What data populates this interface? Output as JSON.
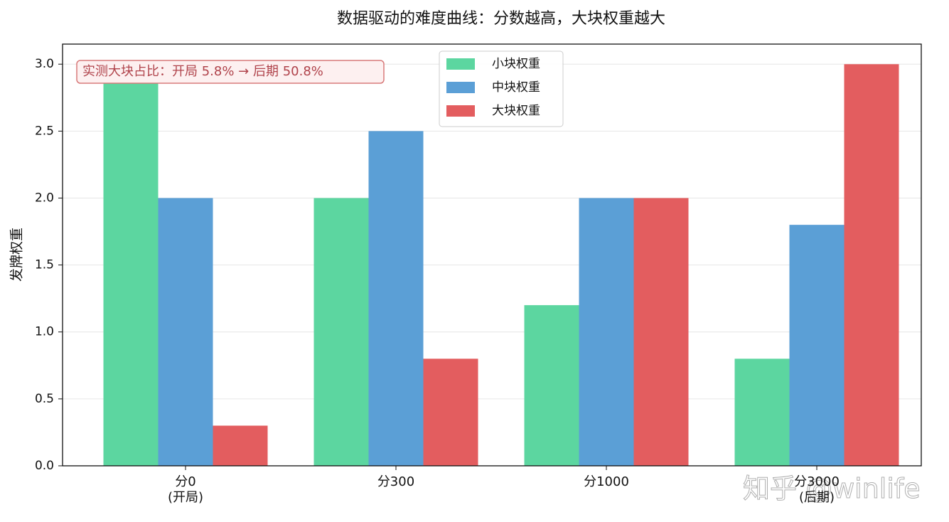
{
  "chart_data": {
    "type": "bar",
    "title": "数据驱动的难度曲线：分数越高，大块权重越大",
    "y_label": "发牌权重",
    "categories": [
      "分0\n(开局)",
      "分300",
      "分1000",
      "分3000\n(后期)"
    ],
    "series": [
      {
        "name": "小块权重",
        "color": "#5cd6a0",
        "values": [
          3.0,
          2.0,
          1.2,
          0.8
        ]
      },
      {
        "name": "中块权重",
        "color": "#5b9fd6",
        "values": [
          2.0,
          2.5,
          2.0,
          1.8
        ]
      },
      {
        "name": "大块权重",
        "color": "#e35d5f",
        "values": [
          0.3,
          0.8,
          2.0,
          3.0
        ]
      }
    ],
    "ylim": [
      0,
      3.15
    ],
    "yticks": [
      {
        "value": 0,
        "label": "0.0"
      },
      {
        "value": 0.5,
        "label": "0.5"
      },
      {
        "value": 1,
        "label": "1.0"
      },
      {
        "value": 1.5,
        "label": "1.5"
      },
      {
        "value": 2,
        "label": "2.0"
      },
      {
        "value": 2.5,
        "label": "2.5"
      },
      {
        "value": 3,
        "label": "3.0"
      }
    ],
    "grid": true,
    "legend": "upper center",
    "annotation": "实测大块占比：开局 5.8% → 后期 50.8%",
    "watermark": "知乎 @winlife"
  }
}
